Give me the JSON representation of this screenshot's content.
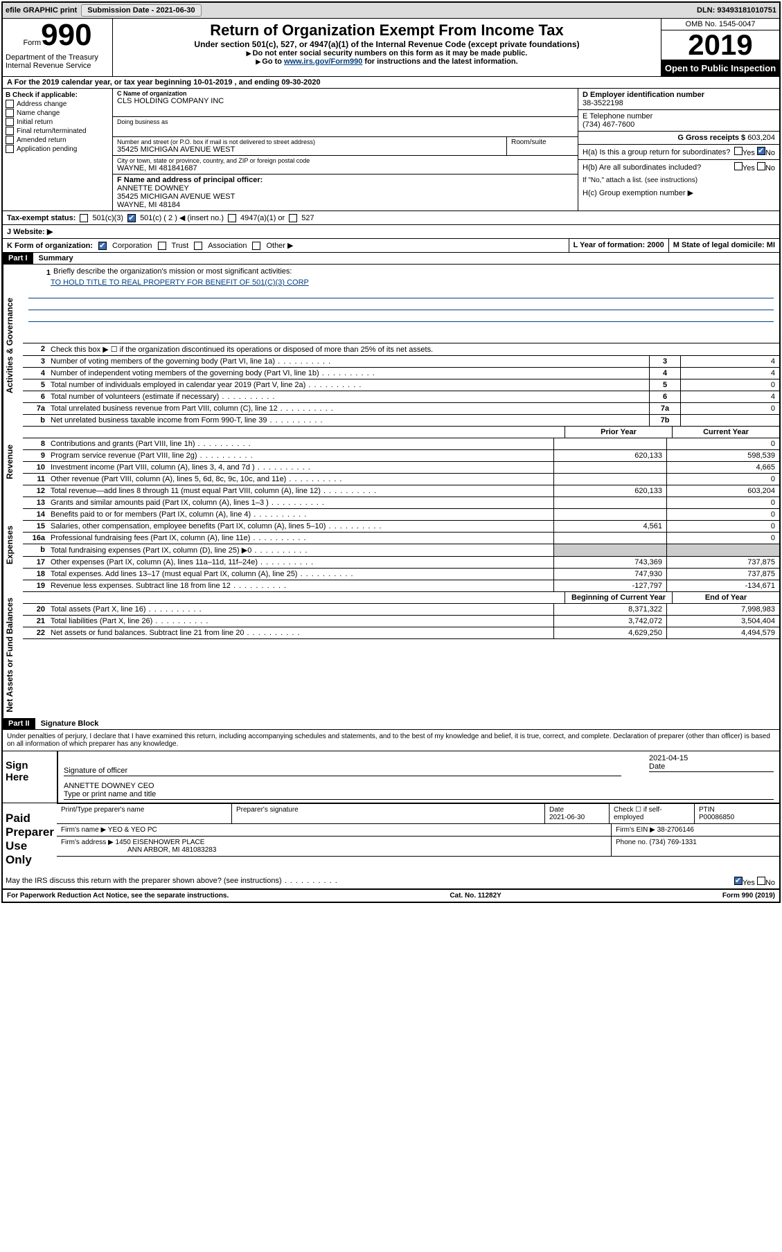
{
  "header_bar": {
    "efile": "efile GRAPHIC print",
    "sub_label": "Submission Date -",
    "sub_date": "2021-06-30",
    "dln": "DLN: 93493181010751"
  },
  "top": {
    "form_label": "Form",
    "form_no": "990",
    "dept": "Department of the Treasury\nInternal Revenue Service",
    "title": "Return of Organization Exempt From Income Tax",
    "sub": "Under section 501(c), 527, or 4947(a)(1) of the Internal Revenue Code (except private foundations)",
    "instr1": "Do not enter social security numbers on this form as it may be made public.",
    "instr2_pre": "Go to ",
    "instr2_link": "www.irs.gov/Form990",
    "instr2_post": " for instructions and the latest information.",
    "omb": "OMB No. 1545-0047",
    "year": "2019",
    "inspect": "Open to Public Inspection"
  },
  "row_a": {
    "text": "For the 2019 calendar year, or tax year beginning 10-01-2019    , and ending 09-30-2020"
  },
  "col_b": {
    "title": "B Check if applicable:",
    "items": [
      "Address change",
      "Name change",
      "Initial return",
      "Final return/terminated",
      "Amended return",
      "Application pending"
    ]
  },
  "center": {
    "c_label": "C Name of organization",
    "c_name": "CLS HOLDING COMPANY INC",
    "dba_label": "Doing business as",
    "addr_label": "Number and street (or P.O. box if mail is not delivered to street address)",
    "addr": "35425 MICHIGAN AVENUE WEST",
    "rs": "Room/suite",
    "city_label": "City or town, state or province, country, and ZIP or foreign postal code",
    "city": "WAYNE, MI  481841687",
    "f_label": "F Name and address of principal officer:",
    "f_name": "ANNETTE DOWNEY",
    "f_addr1": "35425 MICHIGAN AVENUE WEST",
    "f_addr2": "WAYNE, MI  48184"
  },
  "right": {
    "d_label": "D Employer identification number",
    "d_val": "38-3522198",
    "e_label": "E Telephone number",
    "e_val": "(734) 467-7600",
    "g_label": "G Gross receipts $",
    "g_val": "603,204",
    "ha": "H(a)  Is this a group return for subordinates?",
    "hb": "H(b)  Are all subordinates included?",
    "hb_note": "If \"No,\" attach a list. (see instructions)",
    "hc": "H(c)  Group exemption number ▶"
  },
  "tax_status": {
    "label": "Tax-exempt status:",
    "opts": [
      "501(c)(3)",
      "501(c) ( 2 ) ◀ (insert no.)",
      "4947(a)(1) or",
      "527"
    ]
  },
  "j": {
    "label": "J   Website: ▶"
  },
  "klm": {
    "k": "K Form of organization:",
    "k_opts": [
      "Corporation",
      "Trust",
      "Association",
      "Other ▶"
    ],
    "l": "L Year of formation: 2000",
    "m": "M State of legal domicile: MI"
  },
  "part1": {
    "header": "Part I",
    "title": "Summary",
    "q1_label": "1",
    "q1": "Briefly describe the organization's mission or most significant activities:",
    "q1_val": "TO HOLD TITLE TO REAL PROPERTY FOR BENEFIT OF 501(C)(3) CORP",
    "q2": "Check this box ▶ ☐ if the organization discontinued its operations or disposed of more than 25% of its net assets.",
    "lines_gov": [
      {
        "n": "3",
        "t": "Number of voting members of the governing body (Part VI, line 1a)",
        "box": "3",
        "v": "4"
      },
      {
        "n": "4",
        "t": "Number of independent voting members of the governing body (Part VI, line 1b)",
        "box": "4",
        "v": "4"
      },
      {
        "n": "5",
        "t": "Total number of individuals employed in calendar year 2019 (Part V, line 2a)",
        "box": "5",
        "v": "0"
      },
      {
        "n": "6",
        "t": "Total number of volunteers (estimate if necessary)",
        "box": "6",
        "v": "4"
      },
      {
        "n": "7a",
        "t": "Total unrelated business revenue from Part VIII, column (C), line 12",
        "box": "7a",
        "v": "0"
      },
      {
        "n": "b",
        "t": "Net unrelated business taxable income from Form 990-T, line 39",
        "box": "7b",
        "v": ""
      }
    ],
    "vert_gov": "Activities & Governance",
    "vert_rev": "Revenue",
    "vert_exp": "Expenses",
    "vert_net": "Net Assets or Fund Balances",
    "prior": "Prior Year",
    "current": "Current Year",
    "rev_lines": [
      {
        "n": "8",
        "t": "Contributions and grants (Part VIII, line 1h)",
        "p": "",
        "c": "0"
      },
      {
        "n": "9",
        "t": "Program service revenue (Part VIII, line 2g)",
        "p": "620,133",
        "c": "598,539"
      },
      {
        "n": "10",
        "t": "Investment income (Part VIII, column (A), lines 3, 4, and 7d )",
        "p": "",
        "c": "4,665"
      },
      {
        "n": "11",
        "t": "Other revenue (Part VIII, column (A), lines 5, 6d, 8c, 9c, 10c, and 11e)",
        "p": "",
        "c": "0"
      },
      {
        "n": "12",
        "t": "Total revenue—add lines 8 through 11 (must equal Part VIII, column (A), line 12)",
        "p": "620,133",
        "c": "603,204"
      }
    ],
    "exp_lines": [
      {
        "n": "13",
        "t": "Grants and similar amounts paid (Part IX, column (A), lines 1–3 )",
        "p": "",
        "c": "0"
      },
      {
        "n": "14",
        "t": "Benefits paid to or for members (Part IX, column (A), line 4)",
        "p": "",
        "c": "0"
      },
      {
        "n": "15",
        "t": "Salaries, other compensation, employee benefits (Part IX, column (A), lines 5–10)",
        "p": "4,561",
        "c": "0"
      },
      {
        "n": "16a",
        "t": "Professional fundraising fees (Part IX, column (A), line 11e)",
        "p": "",
        "c": "0"
      },
      {
        "n": "b",
        "t": "Total fundraising expenses (Part IX, column (D), line 25) ▶0",
        "p": "",
        "c": ""
      },
      {
        "n": "17",
        "t": "Other expenses (Part IX, column (A), lines 11a–11d, 11f–24e)",
        "p": "743,369",
        "c": "737,875"
      },
      {
        "n": "18",
        "t": "Total expenses. Add lines 13–17 (must equal Part IX, column (A), line 25)",
        "p": "747,930",
        "c": "737,875"
      },
      {
        "n": "19",
        "t": "Revenue less expenses. Subtract line 18 from line 12",
        "p": "-127,797",
        "c": "-134,671"
      }
    ],
    "boy": "Beginning of Current Year",
    "eoy": "End of Year",
    "net_lines": [
      {
        "n": "20",
        "t": "Total assets (Part X, line 16)",
        "p": "8,371,322",
        "c": "7,998,983"
      },
      {
        "n": "21",
        "t": "Total liabilities (Part X, line 26)",
        "p": "3,742,072",
        "c": "3,504,404"
      },
      {
        "n": "22",
        "t": "Net assets or fund balances. Subtract line 21 from line 20",
        "p": "4,629,250",
        "c": "4,494,579"
      }
    ]
  },
  "part2": {
    "header": "Part II",
    "title": "Signature Block",
    "decl": "Under penalties of perjury, I declare that I have examined this return, including accompanying schedules and statements, and to the best of my knowledge and belief, it is true, correct, and complete. Declaration of preparer (other than officer) is based on all information of which preparer has any knowledge.",
    "sign_here": "Sign Here",
    "sig_officer": "Signature of officer",
    "sig_date": "2021-04-15",
    "date_label": "Date",
    "sig_name": "ANNETTE DOWNEY CEO",
    "sig_name_label": "Type or print name and title",
    "paid": "Paid Preparer Use Only",
    "pt_name_label": "Print/Type preparer's name",
    "pt_sig_label": "Preparer's signature",
    "pt_date_label": "Date",
    "pt_date": "2021-06-30",
    "pt_check": "Check ☐ if self-employed",
    "pt_ptin_label": "PTIN",
    "pt_ptin": "P00086850",
    "firm_name_label": "Firm's name    ▶",
    "firm_name": "YEO & YEO PC",
    "firm_ein_label": "Firm's EIN ▶",
    "firm_ein": "38-2706146",
    "firm_addr_label": "Firm's address ▶",
    "firm_addr1": "1450 EISENHOWER PLACE",
    "firm_addr2": "ANN ARBOR, MI  481083283",
    "firm_phone_label": "Phone no.",
    "firm_phone": "(734) 769-1331",
    "discuss": "May the IRS discuss this return with the preparer shown above? (see instructions)"
  },
  "footer": {
    "left": "For Paperwork Reduction Act Notice, see the separate instructions.",
    "center": "Cat. No. 11282Y",
    "right": "Form 990 (2019)"
  }
}
